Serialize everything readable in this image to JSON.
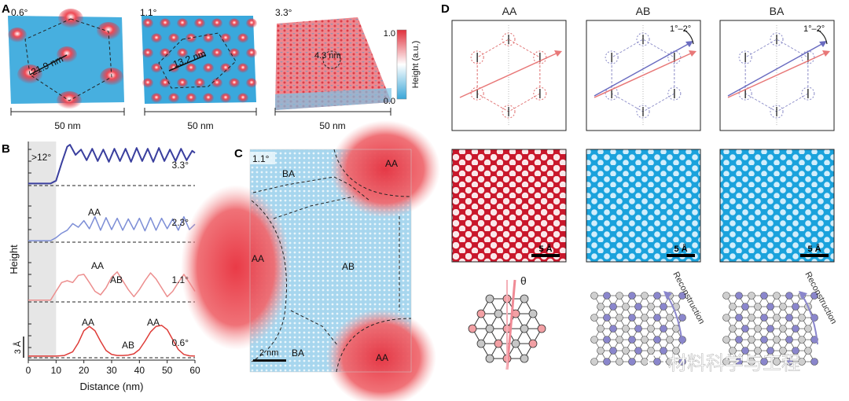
{
  "panels": {
    "A": {
      "letter": "A",
      "images": [
        {
          "angle": "0.6°",
          "period": "21.9 nm",
          "scale": "50 nm"
        },
        {
          "angle": "1.1°",
          "period": "13.2 nm",
          "scale": "50 nm"
        },
        {
          "angle": "3.3°",
          "period": "4.3 nm",
          "scale": "50 nm"
        }
      ],
      "colorbar": {
        "max": "1.0",
        "min": "0.0",
        "label": "Height (a.u.)",
        "colors": [
          "#e0303c",
          "#ffffff",
          "#3aa6d8"
        ]
      }
    },
    "B": {
      "letter": "B",
      "ylabel": "Height",
      "xlabel": "Distance (nm)",
      "x_ticks": [
        "0",
        "10",
        "20",
        "30",
        "40",
        "50",
        "60"
      ],
      "shaded_label": ">12°",
      "scale_label": "3 Å",
      "annotations": {
        "t2_aa": "AA",
        "t3_aa": "AA",
        "t3_ab": "AB",
        "t4_aa1": "AA",
        "t4_ab": "AB",
        "t4_aa2": "AA"
      }
    },
    "C": {
      "letter": "C",
      "angle": "1.1°",
      "labels": {
        "aa_tr": "AA",
        "ba_top": "BA",
        "aa_left": "AA",
        "ab_center": "AB",
        "ba_bottom": "BA",
        "aa_br": "AA"
      },
      "scale": "2 nm"
    },
    "D": {
      "letter": "D",
      "columns": [
        "AA",
        "AB",
        "BA"
      ],
      "rotation": "1°–2°",
      "scale": "5 Å",
      "theta": "θ",
      "reconstruction": "Reconstruction"
    }
  },
  "watermark": "材料科学与工程",
  "chart_data": {
    "type": "line",
    "title": "",
    "xlabel": "Distance (nm)",
    "ylabel": "Height",
    "xlim": [
      0,
      60
    ],
    "series": [
      {
        "name": "3.3°",
        "color": "#3a3f9e",
        "x": [
          0,
          8,
          10,
          12,
          14,
          15,
          17,
          19,
          21,
          23,
          25,
          27,
          29,
          31,
          33,
          35,
          37,
          39,
          41,
          43,
          45,
          47,
          49,
          51,
          53,
          55,
          57,
          59,
          60
        ],
        "y": [
          0.05,
          0.05,
          0.12,
          0.55,
          0.95,
          1.0,
          0.75,
          0.88,
          0.62,
          0.9,
          0.6,
          0.88,
          0.58,
          0.9,
          0.6,
          0.9,
          0.58,
          0.92,
          0.6,
          0.9,
          0.58,
          0.92,
          0.6,
          0.88,
          0.6,
          0.9,
          0.62,
          0.85,
          0.8
        ]
      },
      {
        "name": "2.3°",
        "color": "#7d8ed6",
        "x": [
          0,
          8,
          10,
          12,
          14,
          16,
          18,
          20,
          22,
          24,
          26,
          28,
          30,
          32,
          34,
          36,
          38,
          40,
          42,
          44,
          46,
          48,
          50,
          52,
          54,
          56,
          58,
          60
        ],
        "y": [
          0.05,
          0.05,
          0.15,
          0.3,
          0.4,
          0.62,
          0.5,
          0.72,
          0.45,
          0.85,
          0.4,
          0.82,
          0.42,
          0.8,
          0.4,
          0.78,
          0.42,
          0.8,
          0.38,
          0.82,
          0.4,
          0.8,
          0.45,
          0.78,
          0.4,
          0.85,
          0.42,
          0.6
        ]
      },
      {
        "name": "1.1°",
        "color": "#ec8e8e",
        "x": [
          0,
          8,
          10,
          12,
          14,
          16,
          18,
          20,
          22,
          24,
          26,
          28,
          30,
          32,
          34,
          36,
          38,
          40,
          42,
          44,
          46,
          48,
          50,
          52,
          54,
          56,
          58,
          60
        ],
        "y": [
          0.05,
          0.05,
          0.3,
          0.55,
          0.6,
          0.55,
          0.75,
          0.78,
          0.55,
          0.3,
          0.2,
          0.4,
          0.7,
          0.85,
          0.6,
          0.35,
          0.15,
          0.35,
          0.6,
          0.82,
          0.65,
          0.4,
          0.15,
          0.3,
          0.55,
          0.78,
          0.55,
          0.3
        ]
      },
      {
        "name": "0.6°",
        "color": "#de3c38",
        "x": [
          0,
          5,
          10,
          13,
          16,
          18,
          20,
          22,
          24,
          26,
          28,
          30,
          32,
          34,
          36,
          38,
          40,
          42,
          44,
          46,
          48,
          50,
          52,
          54,
          56,
          58,
          60
        ],
        "y": [
          0.05,
          0.05,
          0.05,
          0.07,
          0.18,
          0.45,
          0.82,
          0.95,
          0.82,
          0.5,
          0.22,
          0.1,
          0.07,
          0.07,
          0.08,
          0.12,
          0.25,
          0.5,
          0.78,
          0.95,
          0.98,
          0.85,
          0.55,
          0.25,
          0.1,
          0.06,
          0.05
        ]
      }
    ]
  }
}
